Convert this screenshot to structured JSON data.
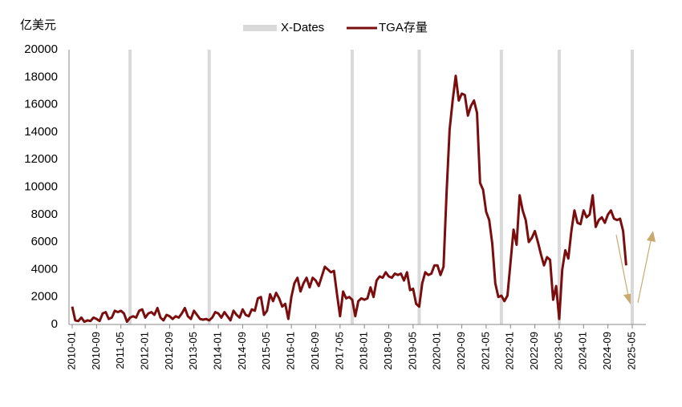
{
  "chart_data": {
    "type": "line",
    "unit_label": "亿美元",
    "ylim": [
      0,
      20000
    ],
    "yticks": [
      0,
      2000,
      4000,
      6000,
      8000,
      10000,
      12000,
      14000,
      16000,
      18000,
      20000
    ],
    "categories": [
      "2010-01",
      null,
      null,
      null,
      null,
      null,
      null,
      null,
      "2010-09",
      null,
      null,
      null,
      null,
      null,
      null,
      null,
      "2011-05",
      null,
      null,
      null,
      null,
      null,
      null,
      null,
      "2012-01",
      null,
      null,
      null,
      null,
      null,
      null,
      null,
      "2012-09",
      null,
      null,
      null,
      null,
      null,
      null,
      null,
      "2013-05",
      null,
      null,
      null,
      null,
      null,
      null,
      null,
      "2014-01",
      null,
      null,
      null,
      null,
      null,
      null,
      null,
      "2014-09",
      null,
      null,
      null,
      null,
      null,
      null,
      null,
      "2015-05",
      null,
      null,
      null,
      null,
      null,
      null,
      null,
      "2016-01",
      null,
      null,
      null,
      null,
      null,
      null,
      null,
      "2016-09",
      null,
      null,
      null,
      null,
      null,
      null,
      null,
      "2017-05",
      null,
      null,
      null,
      null,
      null,
      null,
      null,
      "2018-01",
      null,
      null,
      null,
      null,
      null,
      null,
      null,
      "2018-09",
      null,
      null,
      null,
      null,
      null,
      null,
      null,
      "2019-05",
      null,
      null,
      null,
      null,
      null,
      null,
      null,
      "2020-01",
      null,
      null,
      null,
      null,
      null,
      null,
      null,
      "2020-09",
      null,
      null,
      null,
      null,
      null,
      null,
      null,
      "2021-05",
      null,
      null,
      null,
      null,
      null,
      null,
      null,
      "2022-01",
      null,
      null,
      null,
      null,
      null,
      null,
      null,
      "2022-09",
      null,
      null,
      null,
      null,
      null,
      null,
      null,
      "2023-05",
      null,
      null,
      null,
      null,
      null,
      null,
      null,
      "2024-01",
      null,
      null,
      null,
      null,
      null,
      null,
      null,
      "2024-09",
      null,
      null,
      null,
      null,
      null,
      null,
      null,
      "2025-05"
    ],
    "series": [
      {
        "name": "X-Dates",
        "type": "bar",
        "color": "#d9d9d9",
        "values": [
          null,
          null,
          null,
          null,
          null,
          null,
          null,
          null,
          null,
          null,
          null,
          null,
          null,
          null,
          null,
          null,
          null,
          null,
          null,
          20000,
          null,
          null,
          null,
          null,
          null,
          null,
          null,
          null,
          null,
          null,
          null,
          null,
          null,
          null,
          null,
          null,
          null,
          null,
          null,
          null,
          null,
          null,
          null,
          null,
          null,
          20000,
          null,
          null,
          null,
          null,
          null,
          null,
          null,
          null,
          null,
          null,
          null,
          null,
          null,
          null,
          null,
          null,
          null,
          null,
          null,
          null,
          null,
          null,
          null,
          null,
          null,
          null,
          null,
          null,
          null,
          null,
          null,
          null,
          null,
          null,
          null,
          null,
          null,
          null,
          null,
          null,
          null,
          null,
          null,
          null,
          null,
          null,
          20000,
          null,
          null,
          null,
          null,
          null,
          null,
          null,
          null,
          null,
          null,
          null,
          null,
          null,
          null,
          null,
          null,
          null,
          null,
          null,
          null,
          null,
          20000,
          null,
          null,
          null,
          null,
          null,
          null,
          null,
          null,
          null,
          null,
          null,
          null,
          null,
          null,
          null,
          null,
          null,
          null,
          null,
          null,
          null,
          null,
          null,
          null,
          null,
          null,
          20000,
          null,
          null,
          null,
          null,
          null,
          null,
          null,
          null,
          null,
          null,
          null,
          null,
          null,
          null,
          null,
          null,
          null,
          null,
          20000,
          null,
          null,
          null,
          null,
          null,
          null,
          null,
          null,
          null,
          null,
          null,
          null,
          null,
          null,
          null,
          null,
          null,
          null,
          null,
          null,
          null,
          null,
          null,
          20000
        ]
      },
      {
        "name": "TGA存量",
        "type": "line",
        "color": "#7a0e0e",
        "values": [
          1300,
          300,
          250,
          500,
          200,
          300,
          250,
          500,
          400,
          250,
          800,
          900,
          400,
          500,
          1000,
          900,
          1000,
          800,
          200,
          500,
          600,
          500,
          1000,
          1100,
          500,
          800,
          900,
          700,
          1200,
          500,
          300,
          700,
          600,
          400,
          600,
          500,
          800,
          1200,
          600,
          400,
          1000,
          700,
          400,
          350,
          400,
          300,
          500,
          900,
          800,
          500,
          900,
          600,
          300,
          1000,
          700,
          500,
          1100,
          700,
          600,
          1100,
          1000,
          1900,
          2000,
          700,
          1000,
          2200,
          1700,
          2300,
          1900,
          1300,
          1500,
          400,
          2000,
          3000,
          3400,
          2400,
          3000,
          3400,
          2700,
          3400,
          3200,
          2800,
          3500,
          4200,
          4000,
          3800,
          3900,
          2200,
          600,
          2400,
          1900,
          2000,
          1800,
          600,
          1700,
          1900,
          1800,
          1900,
          2700,
          2000,
          3200,
          3500,
          3400,
          3800,
          3500,
          3400,
          3700,
          3600,
          3700,
          3200,
          3800,
          2500,
          2600,
          1500,
          1300,
          3000,
          3800,
          3600,
          3700,
          4300,
          4300,
          3600,
          4200,
          9600,
          14200,
          16300,
          18100,
          16300,
          16800,
          16700,
          15200,
          15900,
          16300,
          15400,
          10300,
          9800,
          8200,
          7600,
          5900,
          3000,
          2000,
          2100,
          1700,
          2100,
          4500,
          6900,
          5800,
          9400,
          8300,
          7600,
          6000,
          6300,
          6800,
          6000,
          5100,
          4300,
          4900,
          4700,
          1800,
          2800,
          400,
          4000,
          5400,
          4800,
          6800,
          8300,
          7400,
          7300,
          8300,
          7800,
          8000,
          9400,
          7100,
          7600,
          7800,
          7400,
          8000,
          8300,
          7700,
          7600,
          7700,
          6800,
          4300,
          null,
          null
        ]
      }
    ]
  }
}
